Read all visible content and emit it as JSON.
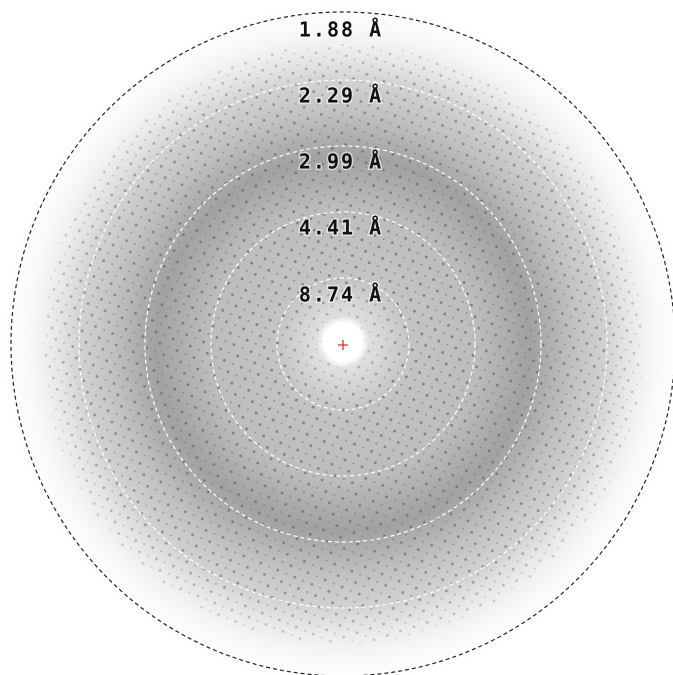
{
  "rings": [
    {
      "label": "1.88 Å"
    },
    {
      "label": "2.29 Å"
    },
    {
      "label": "2.99 Å"
    },
    {
      "label": "4.41 Å"
    },
    {
      "label": "8.74 Å"
    }
  ]
}
